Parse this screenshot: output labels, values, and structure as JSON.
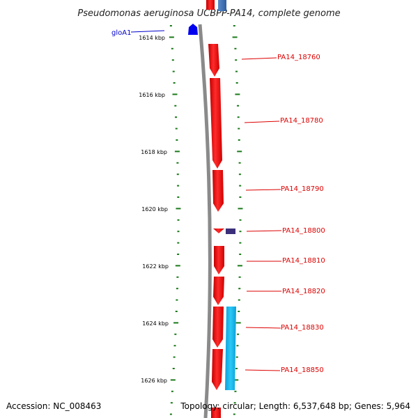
{
  "title": "Pseudomonas aeruginosa UCBPP-PA14, complete genome",
  "footer": {
    "accession": "Accession: NC_008463",
    "summary": "Topology: circular; Length: 6,537,648 bp; Genes: 5,964"
  },
  "scale": {
    "ticks": [
      "1614 kbp",
      "1616 kbp",
      "1618 kbp",
      "1620 kbp",
      "1622 kbp",
      "1624 kbp",
      "1626 kbp"
    ]
  },
  "colors": {
    "backbone": "#808080",
    "forward_gene": "#ff1a1a",
    "reverse_gene_blue": "#0000ee",
    "reverse_gene_navy": "#3b2f7a",
    "reverse_gene_cyan": "#18b8ee",
    "top_gene_blue": "#3a6fb0",
    "scale_tick": "#1a7a1a",
    "label_red": "#dd0000",
    "label_blue": "#0000cc"
  },
  "genes": [
    {
      "label": "gloA1",
      "strand": "reverse",
      "color_key": "reverse_gene_blue",
      "label_color_key": "label_blue"
    },
    {
      "label": "PA14_18760",
      "strand": "forward",
      "color_key": "forward_gene",
      "label_color_key": "label_red"
    },
    {
      "label": "PA14_18780",
      "strand": "forward",
      "color_key": "forward_gene",
      "label_color_key": "label_red"
    },
    {
      "label": "PA14_18790",
      "strand": "forward",
      "color_key": "forward_gene",
      "label_color_key": "label_red"
    },
    {
      "label": "PA14_18800",
      "strand": "forward",
      "color_key": "forward_gene",
      "label_color_key": "label_red"
    },
    {
      "label": "PA14_18810",
      "strand": "forward",
      "color_key": "forward_gene",
      "label_color_key": "label_red"
    },
    {
      "label": "PA14_18820",
      "strand": "forward",
      "color_key": "forward_gene",
      "label_color_key": "label_red"
    },
    {
      "label": "PA14_18830",
      "strand": "forward",
      "color_key": "forward_gene",
      "label_color_key": "label_red"
    },
    {
      "label": "PA14_18850",
      "strand": "reverse",
      "color_key": "reverse_gene_cyan",
      "label_color_key": "label_red"
    }
  ]
}
